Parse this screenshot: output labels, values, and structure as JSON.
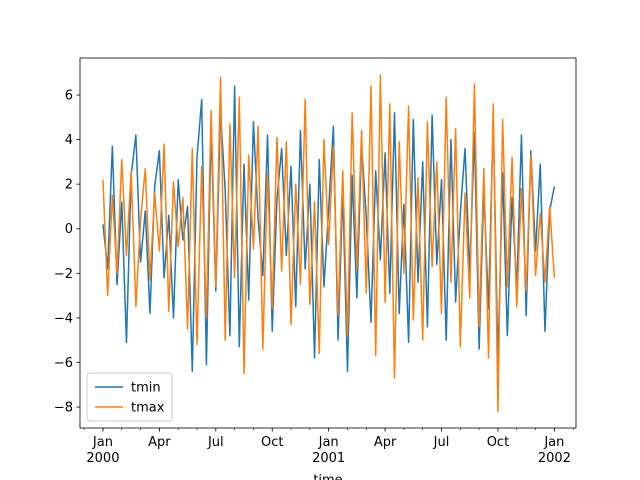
{
  "chart_data": {
    "type": "line",
    "x": [
      0,
      0.25,
      0.5,
      0.75,
      1,
      1.25,
      1.5,
      1.75,
      2,
      2.25,
      2.5,
      2.75,
      3,
      3.25,
      3.5,
      3.75,
      4,
      4.25,
      4.5,
      4.75,
      5,
      5.25,
      5.5,
      5.75,
      6,
      6.25,
      6.5,
      6.75,
      7,
      7.25,
      7.5,
      7.75,
      8,
      8.25,
      8.5,
      8.75,
      9,
      9.25,
      9.5,
      9.75,
      10,
      10.25,
      10.5,
      10.75,
      11,
      11.25,
      11.5,
      11.75,
      12,
      12.25,
      12.5,
      12.75,
      13,
      13.25,
      13.5,
      13.75,
      14,
      14.25,
      14.5,
      14.75,
      15,
      15.25,
      15.5,
      15.75,
      16,
      16.25,
      16.5,
      16.75,
      17,
      17.25,
      17.5,
      17.75,
      18,
      18.25,
      18.5,
      18.75,
      19,
      19.25,
      19.5,
      19.75,
      20,
      20.25,
      20.5,
      20.75,
      21,
      21.25,
      21.5,
      21.75,
      22,
      22.25,
      22.5,
      22.75,
      23,
      23.25,
      23.5,
      23.75,
      24
    ],
    "series": [
      {
        "name": "tmin",
        "color": "#1f77b4",
        "values": [
          0.2,
          -1.8,
          3.7,
          -2.5,
          1.2,
          -5.1,
          2.4,
          4.2,
          -1.5,
          0.8,
          -3.8,
          1.9,
          3.5,
          -2.2,
          0.6,
          -4.0,
          2.2,
          -0.5,
          1.0,
          -6.4,
          3.2,
          5.8,
          -6.1,
          4.5,
          -2.8,
          5.3,
          1.7,
          -4.8,
          6.4,
          -5.3,
          2.9,
          -3.2,
          4.8,
          0.4,
          -2.1,
          4.2,
          -4.6,
          1.3,
          3.6,
          -1.2,
          2.8,
          -3.5,
          4.4,
          -1.8,
          2.0,
          -5.8,
          3.1,
          -2.6,
          0.9,
          4.6,
          -5.0,
          1.7,
          -6.4,
          2.4,
          -3.1,
          3.8,
          0.5,
          -4.2,
          2.6,
          -1.4,
          3.4,
          -2.9,
          5.2,
          -3.8,
          1.1,
          -5.1,
          4.9,
          -2.4,
          3.0,
          -4.4,
          5.1,
          -1.6,
          2.2,
          -5.0,
          4.0,
          -3.3,
          0.7,
          3.6,
          -2.0,
          4.3,
          -5.4,
          1.8,
          -3.6,
          5.0,
          -6.0,
          2.5,
          -4.8,
          1.4,
          -2.7,
          4.2,
          -3.9,
          3.5,
          -1.0,
          2.9,
          -4.6,
          0.8,
          1.9
        ]
      },
      {
        "name": "tmax",
        "color": "#ff7f0e",
        "values": [
          2.2,
          -3.0,
          1.5,
          -2.0,
          3.1,
          -1.2,
          2.6,
          -3.5,
          0.4,
          2.7,
          -2.3,
          1.6,
          -1.0,
          3.8,
          -3.7,
          2.1,
          -0.8,
          1.4,
          -4.5,
          3.6,
          -5.2,
          2.8,
          -4.0,
          5.3,
          -2.6,
          6.8,
          -5.0,
          4.7,
          -2.2,
          5.9,
          -6.5,
          3.3,
          -0.9,
          4.6,
          -5.4,
          2.5,
          -3.6,
          4.1,
          -1.9,
          3.9,
          -4.3,
          2.0,
          -2.5,
          5.8,
          -3.4,
          1.2,
          -5.6,
          4.0,
          -0.7,
          3.7,
          -3.9,
          2.6,
          -4.8,
          5.2,
          -1.8,
          4.4,
          -2.9,
          6.4,
          -5.7,
          6.9,
          -3.3,
          5.6,
          -6.7,
          3.9,
          -2.0,
          5.5,
          -4.1,
          2.3,
          -5.0,
          4.8,
          -1.7,
          3.0,
          -3.8,
          5.9,
          -2.4,
          4.5,
          -5.3,
          1.6,
          -3.1,
          6.5,
          -4.4,
          2.7,
          -5.8,
          5.6,
          -8.2,
          4.9,
          -2.6,
          3.2,
          -3.5,
          1.8,
          -2.8,
          3.3,
          -2.1,
          0.7,
          -2.4,
          1.0,
          -2.2
        ]
      }
    ],
    "xlabel": "time",
    "xlim": [
      -1.22,
      25.15
    ],
    "xticks": [
      {
        "value": 0,
        "label": "Jan\n2000"
      },
      {
        "value": 3,
        "label": "Apr"
      },
      {
        "value": 6,
        "label": "Jul"
      },
      {
        "value": 9,
        "label": "Oct"
      },
      {
        "value": 12,
        "label": "Jan\n2001"
      },
      {
        "value": 15,
        "label": "Apr"
      },
      {
        "value": 18,
        "label": "Jul"
      },
      {
        "value": 21,
        "label": "Oct"
      },
      {
        "value": 24,
        "label": "Jan\n2002"
      }
    ],
    "ylim": [
      -8.94,
      7.66
    ],
    "yticks": [
      {
        "value": -8,
        "label": "−8"
      },
      {
        "value": -6,
        "label": "−6"
      },
      {
        "value": -4,
        "label": "−4"
      },
      {
        "value": -2,
        "label": "−2"
      },
      0,
      2,
      4,
      6
    ],
    "legend": "lower left"
  }
}
